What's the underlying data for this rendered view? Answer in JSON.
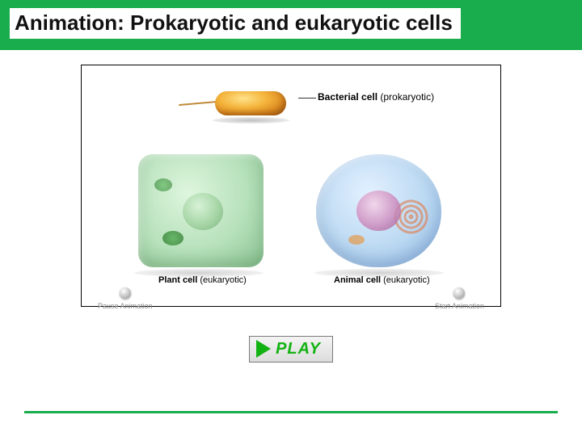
{
  "header": {
    "title": "Animation: Prokaryotic and eukaryotic cells"
  },
  "figure": {
    "bacterial": {
      "label_main": "Bacterial cell",
      "label_sub": "(prokaryotic)"
    },
    "plant": {
      "label_main": "Plant cell",
      "label_sub": "(eukaryotic)"
    },
    "animal": {
      "label_main": "Animal cell",
      "label_sub": "(eukaryotic)"
    },
    "controls": {
      "pause": "Pause Animation",
      "start": "Start Animation"
    }
  },
  "play_button": {
    "label": "PLAY"
  },
  "colors": {
    "brand_green": "#1aad4d",
    "play_green": "#13b213",
    "background_white": "#ffffff",
    "text_black": "#000000",
    "ctrl_gray": "#888888"
  }
}
